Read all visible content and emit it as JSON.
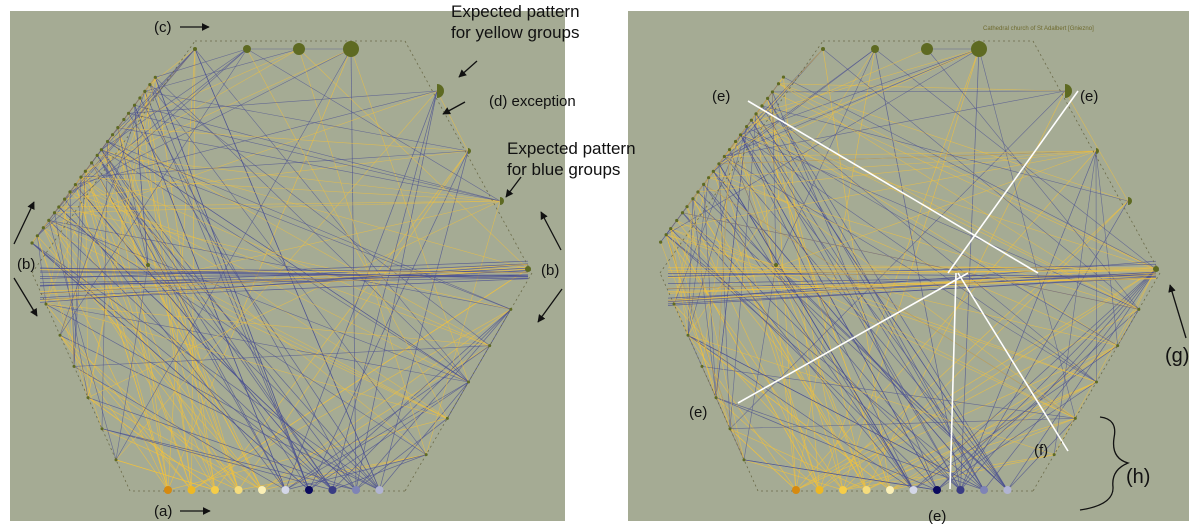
{
  "panels": {
    "left": {
      "labels": {
        "c": "(c)",
        "yellow_pattern": "Expected pattern\nfor yellow groups",
        "d": "(d) exception",
        "blue_pattern": "Expected pattern\nfor blue groups",
        "b_left": "(b)",
        "b_right": "(b)",
        "a": "(a)"
      }
    },
    "right": {
      "title": "Cathedral church of St Adalbert  [Gniezno]",
      "labels": {
        "e_top_left": "(e)",
        "e_top_right": "(e)",
        "e_bottom_left": "(e)",
        "e_bottom": "(e)",
        "f": "(f)",
        "g": "(g)",
        "h": "(h)"
      }
    }
  },
  "colors": {
    "background": "#a5ab94",
    "node": "#5e6a22",
    "yellow_edge": "#f2c23c",
    "blue_edge": "#4a4f92",
    "highlight_edge": "#ffffff",
    "bottom_nodes": [
      "#d68a10",
      "#eeb824",
      "#f5cd48",
      "#f5dc7c",
      "#fbf0b6",
      "#d4d7e8",
      "#0a0a5e",
      "#3a3d84",
      "#7f84b6",
      "#b1b4d3"
    ]
  }
}
